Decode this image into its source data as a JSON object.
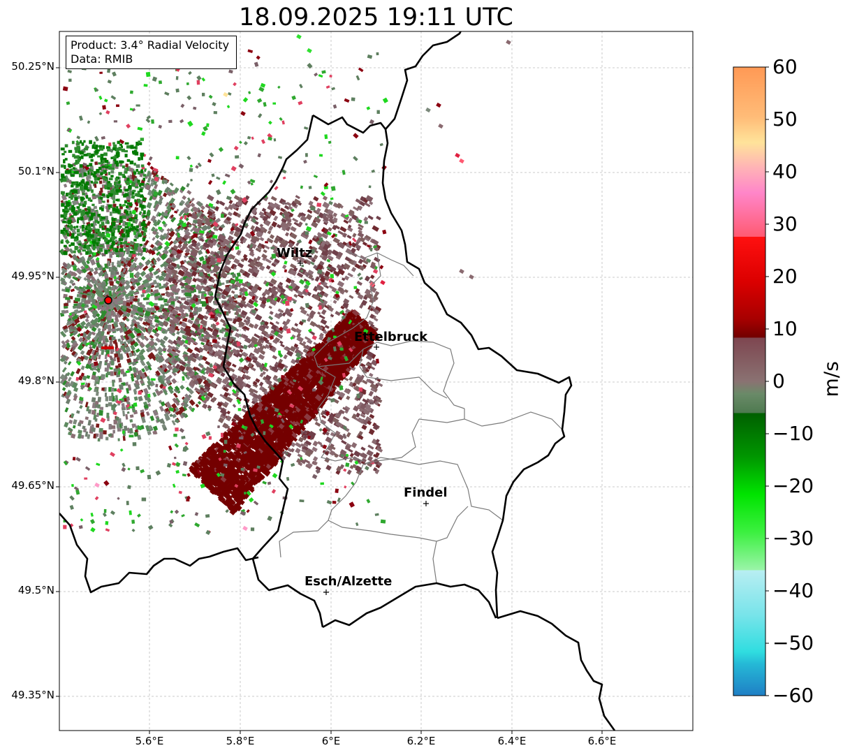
{
  "title": "18.09.2025 19:11 UTC",
  "info": {
    "product": "Product: 3.4° Radial Velocity",
    "data": "Data: RMIB"
  },
  "axes": {
    "lat_labels": [
      "50.25°N",
      "50.1°N",
      "49.95°N",
      "49.8°N",
      "49.65°N",
      "49.5°N",
      "49.35°N"
    ],
    "lon_labels": [
      "5.6°E",
      "5.8°E",
      "6°E",
      "6.2°E",
      "6.4°E",
      "6.6°E"
    ]
  },
  "places": [
    {
      "name": "Wiltz",
      "lon": 5.93,
      "lat": 49.97
    },
    {
      "name": "Ettelbruck",
      "lon": 6.1,
      "lat": 49.85
    },
    {
      "name": "Findel",
      "lon": 6.21,
      "lat": 49.63
    },
    {
      "name": "Esch/Alzette",
      "lon": 5.99,
      "lat": 49.5
    }
  ],
  "colorbar": {
    "label": "m/s",
    "ticks": [
      "60",
      "50",
      "40",
      "30",
      "20",
      "10",
      "0",
      "−10",
      "−20",
      "−30",
      "−40",
      "−50",
      "−60"
    ],
    "range": [
      -60,
      60
    ],
    "colors_top_to_bottom": [
      "#ff9955",
      "#ffb870",
      "#ffe398",
      "#ffb0b4",
      "#ff80c8",
      "#ff5570",
      "#ff0f10",
      "#d40000",
      "#9a0000",
      "#6e0000",
      "#7d4650",
      "#8a7070",
      "#5e8060",
      "#006400",
      "#009900",
      "#00e000",
      "#3cf040",
      "#90f0a0",
      "#b5eef0",
      "#70e2e8",
      "#30dde0",
      "#22b5d5",
      "#1f7fc5"
    ]
  },
  "radar": {
    "lon": 5.5,
    "lat": 49.91
  }
}
